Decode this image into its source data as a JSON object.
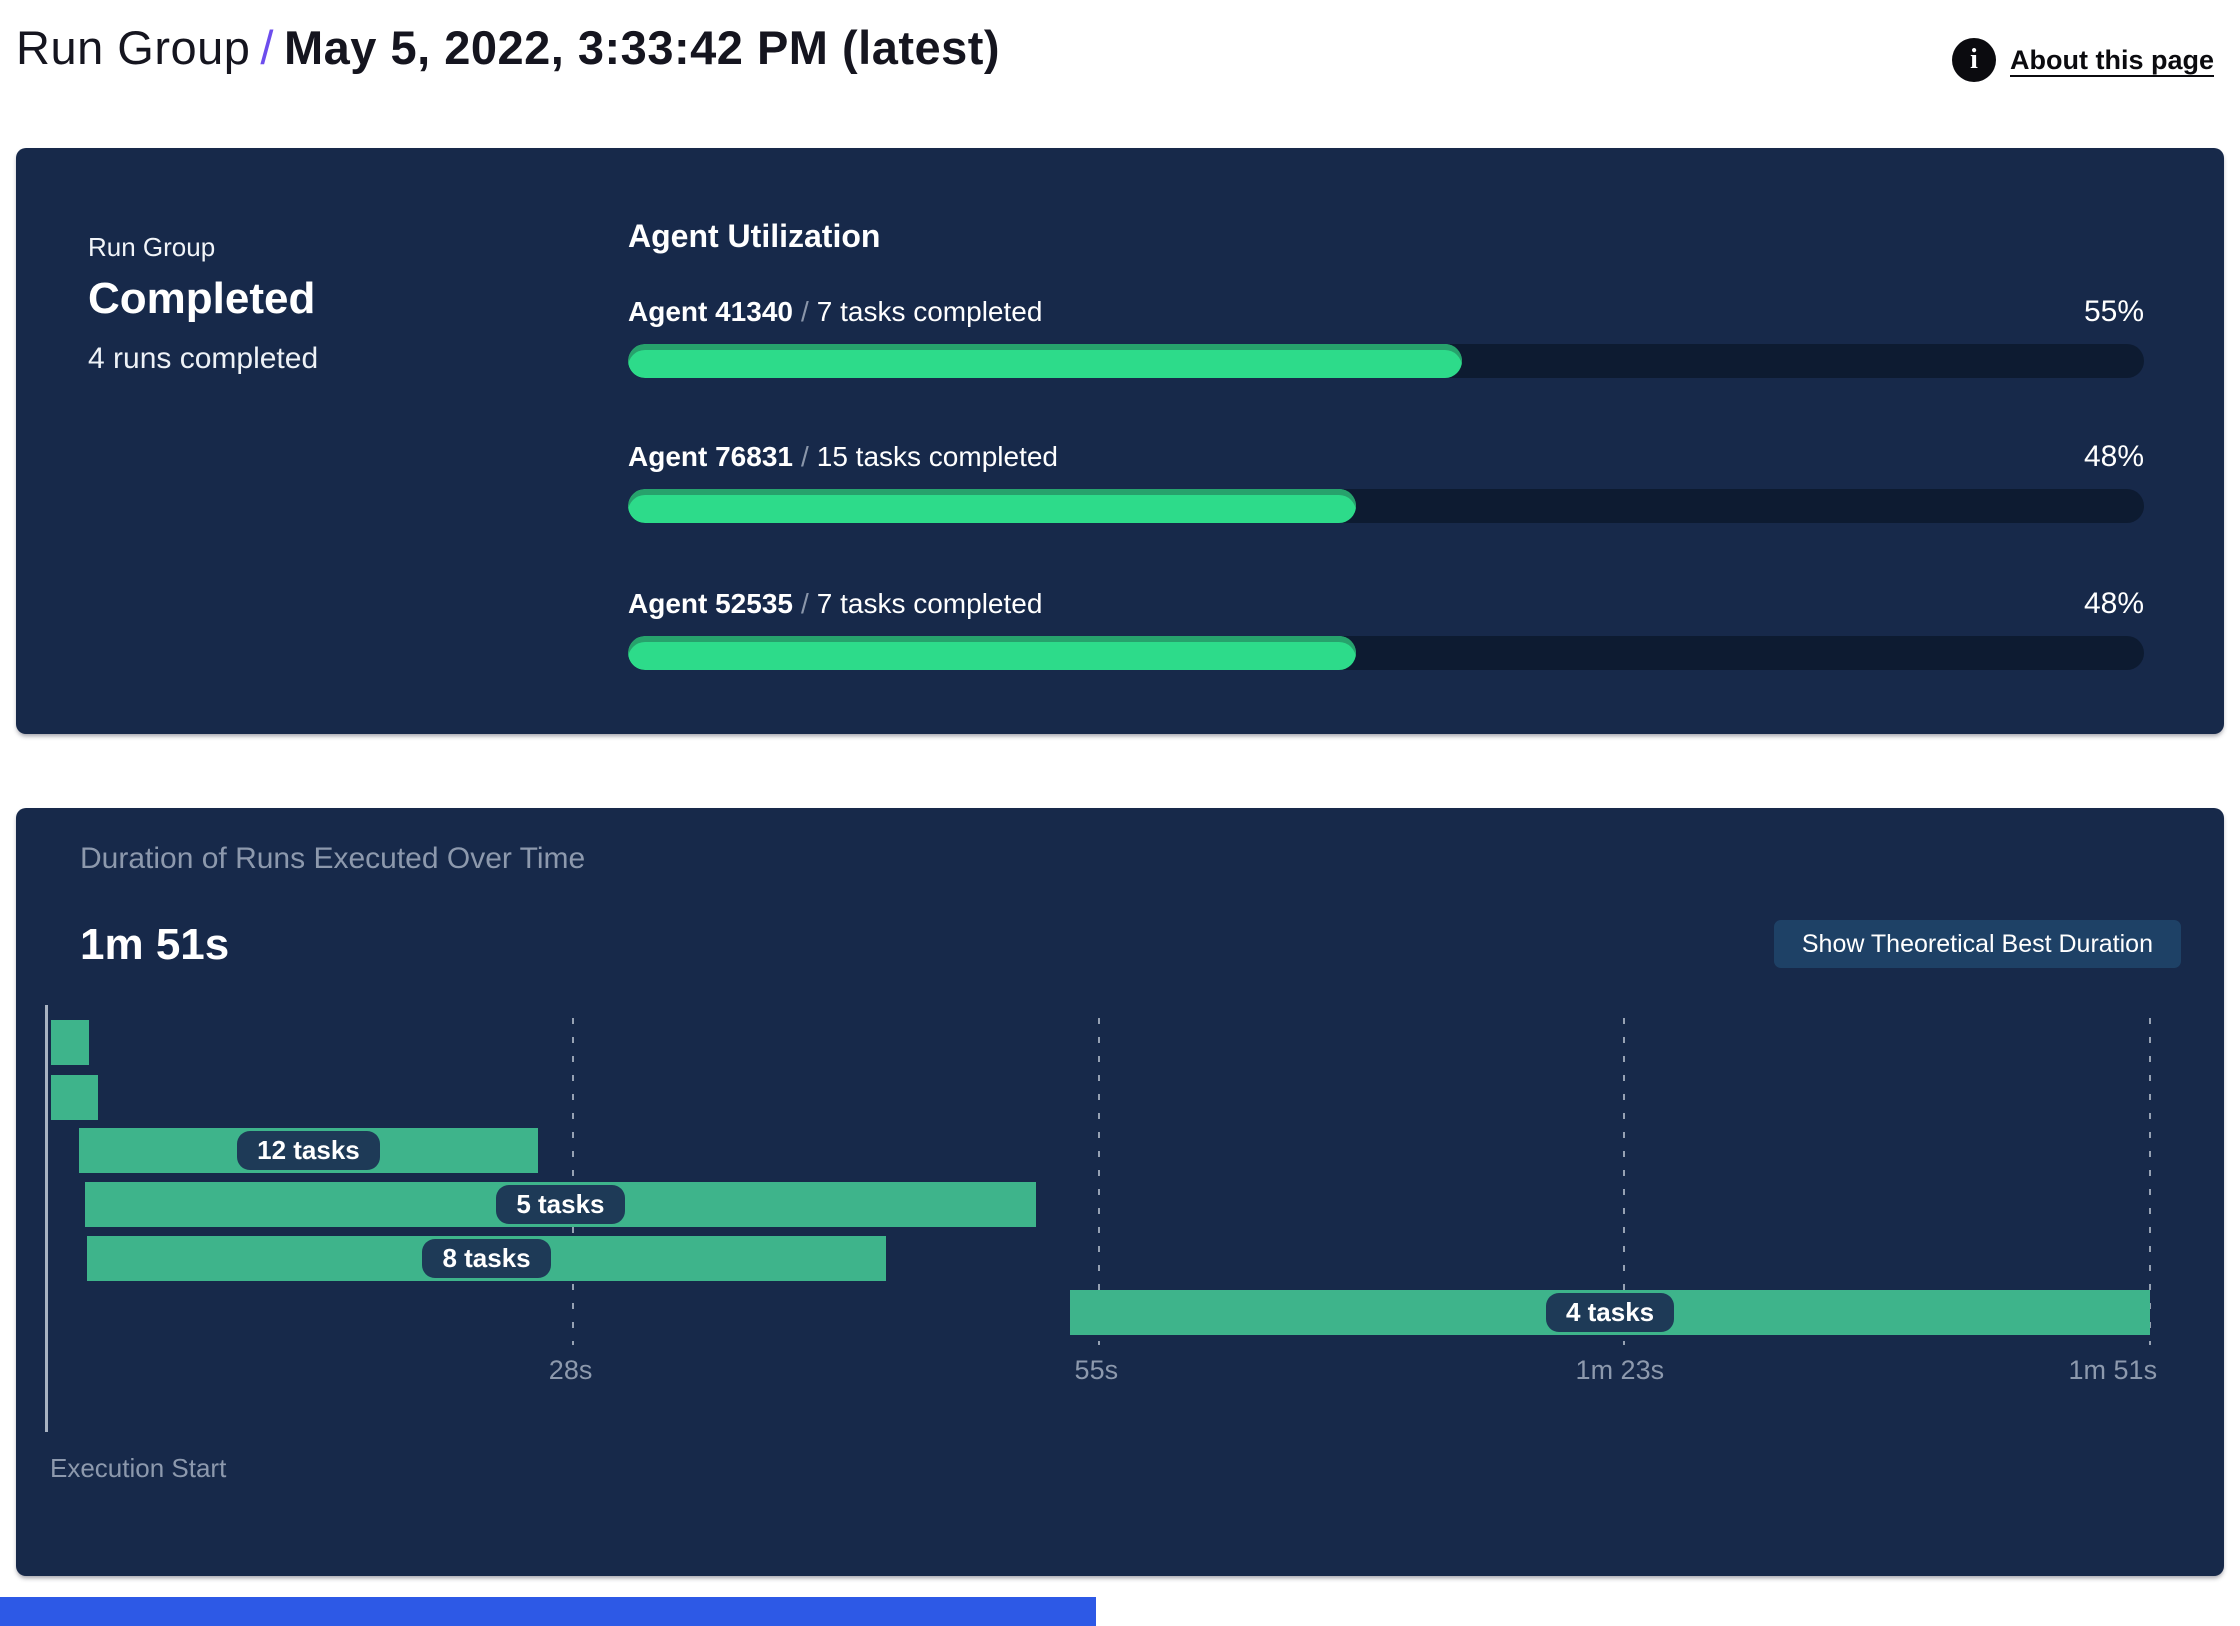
{
  "header": {
    "breadcrumb": "Run Group",
    "separator": "/",
    "title": "May 5, 2022, 3:33:42 PM (latest)",
    "about_link": "About this page",
    "info_icon": "i"
  },
  "colors": {
    "page_bg": "#ffffff",
    "panel_bg": "#17294a",
    "accent_purple": "#6d4ded",
    "progress_green": "#2ddb8a",
    "progress_track": "#0d1b31",
    "gantt_green": "#3eb48b",
    "pill_bg": "#1e3a57",
    "button_bg": "#1e4166",
    "muted_text": "#8d99ad",
    "axis_line": "#a8b2c1",
    "bottom_bar_blue": "#2d59e6"
  },
  "run_group_panel": {
    "label": "Run Group",
    "status": "Completed",
    "runs_summary": "4 runs completed",
    "utilization_title": "Agent Utilization",
    "agents": [
      {
        "name": "Agent 41340",
        "separator": "/",
        "tasks": "7 tasks completed",
        "percent_label": "55%"
      },
      {
        "name": "Agent 76831",
        "separator": "/",
        "tasks": "15 tasks completed",
        "percent_label": "48%"
      },
      {
        "name": "Agent 52535",
        "separator": "/",
        "tasks": "7 tasks completed",
        "percent_label": "48%"
      }
    ]
  },
  "duration_panel": {
    "title": "Duration of Runs Executed Over Time",
    "total_duration": "1m 51s",
    "button_label": "Show Theoretical Best Duration",
    "execution_start_label": "Execution Start"
  },
  "chart_data": [
    {
      "type": "bar",
      "orientation": "horizontal",
      "title": "Agent Utilization",
      "categories": [
        "Agent 41340",
        "Agent 76831",
        "Agent 52535"
      ],
      "values": [
        55,
        48,
        48
      ],
      "value_unit": "%",
      "annotations": [
        "7 tasks completed",
        "15 tasks completed",
        "7 tasks completed"
      ],
      "xlim": [
        0,
        100
      ],
      "grid": false,
      "legend": false
    },
    {
      "type": "bar",
      "variant": "gantt-timeline",
      "title": "Duration of Runs Executed Over Time",
      "total_duration": "1m 51s",
      "grid": "dashed-vertical",
      "x_axis": {
        "label": "Execution Start",
        "max_seconds": 111,
        "ticks": [
          {
            "label": "28s",
            "seconds": 28,
            "position": 0.25
          },
          {
            "label": "55s",
            "seconds": 55,
            "position": 0.5
          },
          {
            "label": "1m 23s",
            "seconds": 83,
            "position": 0.75
          },
          {
            "label": "1m 51s",
            "seconds": 111,
            "position": 1
          }
        ]
      },
      "runs": [
        {
          "label": "",
          "start_s": 0.2,
          "end_s": 2.2
        },
        {
          "label": "",
          "start_s": 0.2,
          "end_s": 2.7
        },
        {
          "label": "12 tasks",
          "start_s": 1.7,
          "end_s": 25.9
        },
        {
          "label": "5 tasks",
          "start_s": 2.0,
          "end_s": 52.2
        },
        {
          "label": "8 tasks",
          "start_s": 2.1,
          "end_s": 44.3
        },
        {
          "label": "4 tasks",
          "start_s": 54.0,
          "end_s": 111
        }
      ]
    }
  ]
}
